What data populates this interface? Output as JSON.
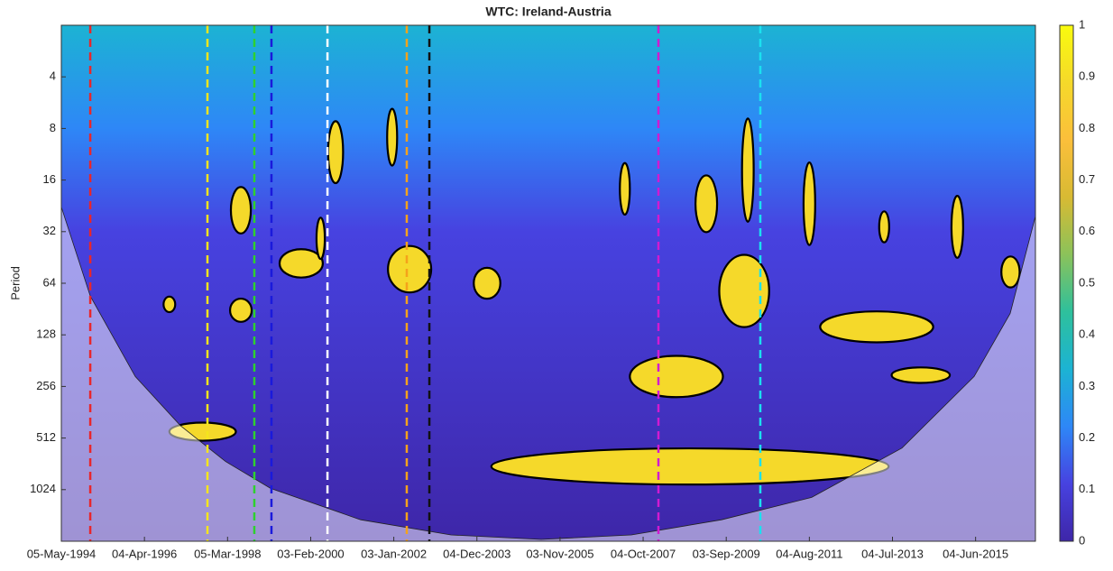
{
  "chart_data": {
    "type": "wavelet-coherence",
    "title": "WTC: Ireland-Austria",
    "ylabel": "Period",
    "log_scale_y": true,
    "y_reversed": true,
    "xlim": [
      0,
      5860
    ],
    "xticks": [
      {
        "value": 0,
        "label": "05-May-1994"
      },
      {
        "value": 500,
        "label": "04-Apr-1996"
      },
      {
        "value": 1000,
        "label": "05-Mar-1998"
      },
      {
        "value": 1500,
        "label": "03-Feb-2000"
      },
      {
        "value": 2000,
        "label": "03-Jan-2002"
      },
      {
        "value": 2500,
        "label": "04-Dec-2003"
      },
      {
        "value": 3000,
        "label": "03-Nov-2005"
      },
      {
        "value": 3500,
        "label": "04-Oct-2007"
      },
      {
        "value": 4000,
        "label": "03-Sep-2009"
      },
      {
        "value": 4500,
        "label": "04-Aug-2011"
      },
      {
        "value": 5000,
        "label": "04-Jul-2013"
      },
      {
        "value": 5500,
        "label": "04-Jun-2015"
      }
    ],
    "ylim": [
      2,
      2048
    ],
    "yticks": [
      4,
      8,
      16,
      32,
      64,
      128,
      256,
      512,
      1024
    ],
    "clim": [
      0,
      1
    ],
    "cticks": [
      0,
      0.1,
      0.2,
      0.3,
      0.4,
      0.5,
      0.6,
      0.7,
      0.8,
      0.9,
      1
    ],
    "colormap": [
      "#3e26a8",
      "#4742e0",
      "#2e87f7",
      "#1cb3d3",
      "#2ec09c",
      "#8bc25a",
      "#d8ba33",
      "#fbbf3b",
      "#f5d92a",
      "#f9fb0e"
    ],
    "event_lines": [
      {
        "x": 174,
        "color": "#e8262b"
      },
      {
        "x": 879,
        "color": "#f5e51b"
      },
      {
        "x": 1161,
        "color": "#2ed12e"
      },
      {
        "x": 1264,
        "color": "#1a1adb"
      },
      {
        "x": 1601,
        "color": "#ffffff"
      },
      {
        "x": 2078,
        "color": "#f5a21b"
      },
      {
        "x": 2214,
        "color": "#111111"
      },
      {
        "x": 3592,
        "color": "#d11ad1"
      },
      {
        "x": 4205,
        "color": "#1ae1f0"
      }
    ],
    "coi": {
      "x": [
        0,
        174,
        445,
        716,
        988,
        1259,
        1801,
        2344,
        2887,
        3429,
        3972,
        4514,
        5057,
        5491,
        5708,
        5860
      ],
      "period": [
        23,
        76,
        224,
        433,
        702,
        1007,
        1534,
        1882,
        2000,
        1882,
        1534,
        1136,
        586,
        224,
        96,
        26
      ]
    },
    "regions": [
      {
        "x": 3782,
        "period": 750,
        "x_span": 2390,
        "octaves": 0.7,
        "coherence": 0.85
      },
      {
        "x": 850,
        "period": 470,
        "x_span": 400,
        "octaves": 0.35,
        "coherence": 0.85
      },
      {
        "x": 3700,
        "period": 224,
        "x_span": 560,
        "octaves": 0.8,
        "coherence": 0.85
      },
      {
        "x": 4905,
        "period": 115,
        "x_span": 680,
        "octaves": 0.6,
        "coherence": 0.85
      },
      {
        "x": 5170,
        "period": 220,
        "x_span": 350,
        "octaves": 0.3,
        "coherence": 0.85
      },
      {
        "x": 4108,
        "period": 71,
        "x_span": 300,
        "octaves": 1.4,
        "coherence": 0.85
      },
      {
        "x": 2095,
        "period": 53,
        "x_span": 260,
        "octaves": 0.9,
        "coherence": 0.85
      },
      {
        "x": 1443,
        "period": 49,
        "x_span": 260,
        "octaves": 0.55,
        "coherence": 0.85
      },
      {
        "x": 1080,
        "period": 24,
        "x_span": 120,
        "octaves": 0.9,
        "coherence": 0.85
      },
      {
        "x": 1080,
        "period": 92,
        "x_span": 130,
        "octaves": 0.45,
        "coherence": 0.85
      },
      {
        "x": 2561,
        "period": 64,
        "x_span": 160,
        "octaves": 0.6,
        "coherence": 0.85
      },
      {
        "x": 650,
        "period": 85,
        "x_span": 70,
        "octaves": 0.3,
        "coherence": 0.85
      },
      {
        "x": 1650,
        "period": 11,
        "x_span": 90,
        "octaves": 1.2,
        "coherence": 0.85
      },
      {
        "x": 1990,
        "period": 9,
        "x_span": 60,
        "octaves": 1.1,
        "coherence": 0.85
      },
      {
        "x": 3880,
        "period": 22,
        "x_span": 130,
        "octaves": 1.1,
        "coherence": 0.85
      },
      {
        "x": 4130,
        "period": 14,
        "x_span": 70,
        "octaves": 2.0,
        "coherence": 0.85
      },
      {
        "x": 4500,
        "period": 22,
        "x_span": 70,
        "octaves": 1.6,
        "coherence": 0.85
      },
      {
        "x": 5390,
        "period": 30,
        "x_span": 70,
        "octaves": 1.2,
        "coherence": 0.85
      },
      {
        "x": 5710,
        "period": 55,
        "x_span": 110,
        "octaves": 0.6,
        "coherence": 0.85
      },
      {
        "x": 3390,
        "period": 18,
        "x_span": 60,
        "octaves": 1.0,
        "coherence": 0.85
      },
      {
        "x": 4950,
        "period": 30,
        "x_span": 60,
        "octaves": 0.6,
        "coherence": 0.85
      },
      {
        "x": 1560,
        "period": 35,
        "x_span": 50,
        "octaves": 0.8,
        "coherence": 0.85
      }
    ]
  }
}
